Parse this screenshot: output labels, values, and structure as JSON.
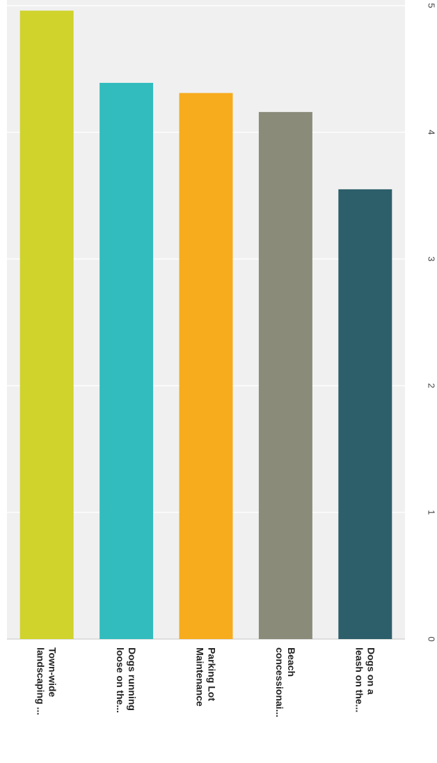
{
  "chart_data": {
    "type": "bar",
    "orientation": "horizontal",
    "rotation": "90deg clockwise",
    "categories": [
      [
        "Town-wide",
        "landscaping ..."
      ],
      [
        "Dogs running",
        "loose on the..."
      ],
      [
        "Parking Lot",
        "Maintenance"
      ],
      [
        "Beach",
        "concessionai..."
      ],
      [
        "Dogs on a",
        "leash on the..."
      ]
    ],
    "values": [
      4.96,
      4.39,
      4.31,
      4.16,
      3.55
    ],
    "colors": [
      "#cfd32c",
      "#33bcbe",
      "#f7ac1e",
      "#8b8b7a",
      "#2d5f6b"
    ],
    "xlim": [
      0,
      5
    ],
    "ticks": [
      "0",
      "1",
      "2",
      "3",
      "4",
      "5"
    ],
    "grid": true,
    "title": "",
    "xlabel": "",
    "ylabel": ""
  }
}
